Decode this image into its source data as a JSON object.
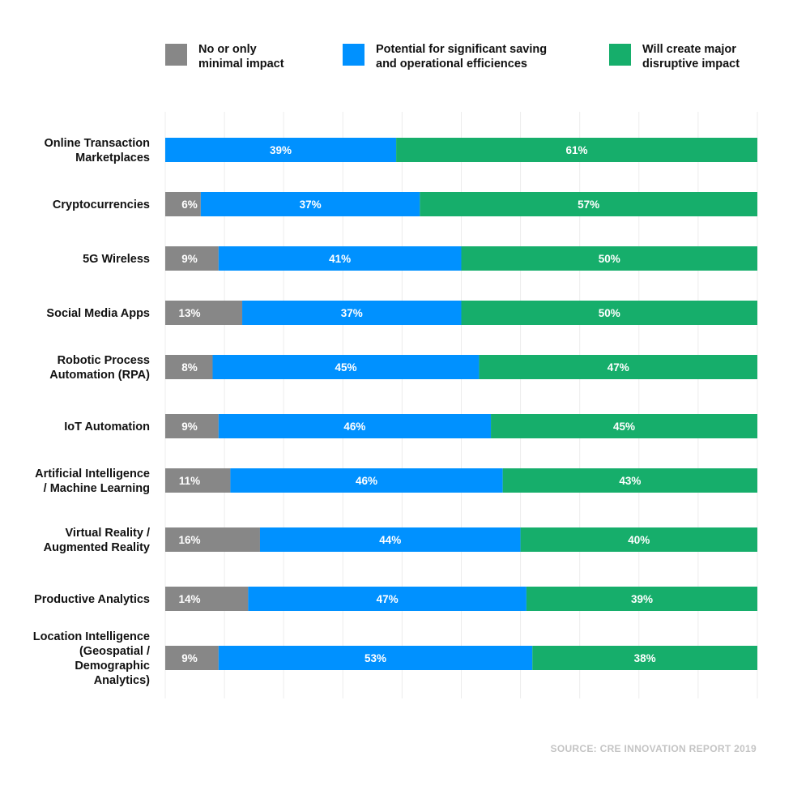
{
  "legend": {
    "items": [
      {
        "label": "No or only\nminimal impact",
        "color": "#878787"
      },
      {
        "label": "Potential for significant saving\nand operational efficiences",
        "color": "#0091ff"
      },
      {
        "label": "Will create major\ndisruptive impact",
        "color": "#16ae6b"
      }
    ]
  },
  "source": "SOURCE: CRE INNOVATION REPORT 2019",
  "chart_data": {
    "type": "bar",
    "orientation": "horizontal",
    "stacked": true,
    "xlim": [
      0,
      100
    ],
    "grid": true,
    "legend_position": "top",
    "categories": [
      "Online Transaction Marketplaces",
      "Cryptocurrencies",
      "5G Wireless",
      "Social Media Apps",
      "Robotic Process Automation (RPA)",
      "IoT Automation",
      "Artificial Intelligence / Machine Learning",
      "Virtual Reality / Augmented Reality",
      "Productive Analytics",
      "Location Intelligence (Geospatial / Demographic Analytics)"
    ],
    "category_lines": [
      [
        "Online Transaction",
        "Marketplaces"
      ],
      [
        "Cryptocurrencies"
      ],
      [
        "5G Wireless"
      ],
      [
        "Social Media Apps"
      ],
      [
        "Robotic Process",
        "Automation (RPA)"
      ],
      [
        "IoT Automation"
      ],
      [
        "Artificial Intelligence",
        "/ Machine Learning"
      ],
      [
        "Virtual Reality /",
        "Augmented Reality"
      ],
      [
        "Productive Analytics"
      ],
      [
        "Location Intelligence",
        "(Geospatial /",
        "Demographic",
        "Analytics)"
      ]
    ],
    "series": [
      {
        "name": "No or only minimal impact",
        "color": "#878787",
        "values": [
          0,
          6,
          9,
          13,
          8,
          9,
          11,
          16,
          14,
          9
        ]
      },
      {
        "name": "Potential for significant saving and operational efficiences",
        "color": "#0091ff",
        "values": [
          39,
          37,
          41,
          37,
          45,
          46,
          46,
          44,
          47,
          53
        ]
      },
      {
        "name": "Will create major disruptive impact",
        "color": "#16ae6b",
        "values": [
          61,
          57,
          50,
          50,
          47,
          45,
          43,
          40,
          39,
          38
        ]
      }
    ],
    "value_suffix": "%"
  }
}
